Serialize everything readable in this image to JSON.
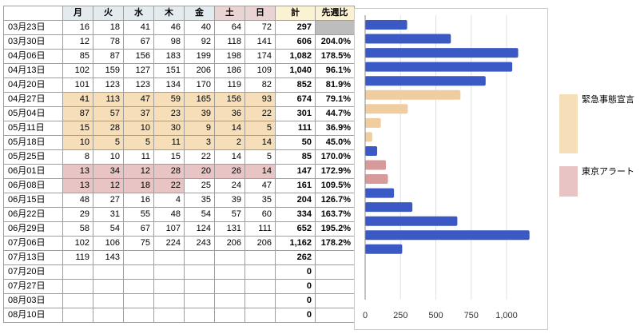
{
  "table": {
    "headers": [
      "",
      "月",
      "火",
      "水",
      "木",
      "金",
      "土",
      "日",
      "計",
      "先週比"
    ],
    "header_colors": [
      "#ffffff",
      "#e3ebef",
      "#e3ebef",
      "#e3ebef",
      "#e3ebef",
      "#e3ebef",
      "#ead3d3",
      "#ead3d3",
      "#fbf2d3",
      "#fbf2d3"
    ],
    "rows": [
      {
        "date": "03月23日",
        "days": [
          "16",
          "18",
          "41",
          "46",
          "40",
          "64",
          "72"
        ],
        "total": "297",
        "ratio": "",
        "period": "",
        "ratio_gray": true
      },
      {
        "date": "03月30日",
        "days": [
          "12",
          "78",
          "67",
          "98",
          "92",
          "118",
          "141"
        ],
        "total": "606",
        "ratio": "204.0%",
        "period": ""
      },
      {
        "date": "04月06日",
        "days": [
          "85",
          "87",
          "156",
          "183",
          "199",
          "198",
          "174"
        ],
        "total": "1,082",
        "ratio": "178.5%",
        "period": ""
      },
      {
        "date": "04月13日",
        "days": [
          "102",
          "159",
          "127",
          "151",
          "206",
          "186",
          "109"
        ],
        "total": "1,040",
        "ratio": "96.1%",
        "period": ""
      },
      {
        "date": "04月20日",
        "days": [
          "101",
          "123",
          "123",
          "134",
          "170",
          "119",
          "82"
        ],
        "total": "852",
        "ratio": "81.9%",
        "period": ""
      },
      {
        "date": "04月27日",
        "days": [
          "41",
          "113",
          "47",
          "59",
          "165",
          "156",
          "93"
        ],
        "total": "674",
        "ratio": "79.1%",
        "period": "emergency"
      },
      {
        "date": "05月04日",
        "days": [
          "87",
          "57",
          "37",
          "23",
          "39",
          "36",
          "22"
        ],
        "total": "301",
        "ratio": "44.7%",
        "period": "emergency"
      },
      {
        "date": "05月11日",
        "days": [
          "15",
          "28",
          "10",
          "30",
          "9",
          "14",
          "5"
        ],
        "total": "111",
        "ratio": "36.9%",
        "period": "emergency"
      },
      {
        "date": "05月18日",
        "days": [
          "10",
          "5",
          "5",
          "11",
          "3",
          "2",
          "14"
        ],
        "total": "50",
        "ratio": "45.0%",
        "period": "emergency"
      },
      {
        "date": "05月25日",
        "days": [
          "8",
          "10",
          "11",
          "15",
          "22",
          "14",
          "5"
        ],
        "total": "85",
        "ratio": "170.0%",
        "period": ""
      },
      {
        "date": "06月01日",
        "days": [
          "13",
          "34",
          "12",
          "28",
          "20",
          "26",
          "14"
        ],
        "total": "147",
        "ratio": "172.9%",
        "period": "alert"
      },
      {
        "date": "06月08日",
        "days": [
          "13",
          "12",
          "18",
          "22",
          "25",
          "24",
          "47"
        ],
        "total": "161",
        "ratio": "109.5%",
        "period": "alert-partial"
      },
      {
        "date": "06月15日",
        "days": [
          "48",
          "27",
          "16",
          "4",
          "35",
          "39",
          "35"
        ],
        "total": "204",
        "ratio": "126.7%",
        "period": ""
      },
      {
        "date": "06月22日",
        "days": [
          "29",
          "31",
          "55",
          "48",
          "54",
          "57",
          "60"
        ],
        "total": "334",
        "ratio": "163.7%",
        "period": ""
      },
      {
        "date": "06月29日",
        "days": [
          "58",
          "54",
          "67",
          "107",
          "124",
          "131",
          "111"
        ],
        "total": "652",
        "ratio": "195.2%",
        "period": ""
      },
      {
        "date": "07月06日",
        "days": [
          "102",
          "106",
          "75",
          "224",
          "243",
          "206",
          "206"
        ],
        "total": "1,162",
        "ratio": "178.2%",
        "period": ""
      },
      {
        "date": "07月13日",
        "days": [
          "119",
          "143",
          "",
          "",
          "",
          "",
          ""
        ],
        "total": "262",
        "ratio": "",
        "period": ""
      },
      {
        "date": "07月20日",
        "days": [
          "",
          "",
          "",
          "",
          "",
          "",
          ""
        ],
        "total": "0",
        "ratio": "",
        "period": ""
      },
      {
        "date": "07月27日",
        "days": [
          "",
          "",
          "",
          "",
          "",
          "",
          ""
        ],
        "total": "0",
        "ratio": "",
        "period": ""
      },
      {
        "date": "08月03日",
        "days": [
          "",
          "",
          "",
          "",
          "",
          "",
          ""
        ],
        "total": "0",
        "ratio": "",
        "period": ""
      },
      {
        "date": "08月10日",
        "days": [
          "",
          "",
          "",
          "",
          "",
          "",
          ""
        ],
        "total": "0",
        "ratio": "",
        "period": ""
      }
    ]
  },
  "colors": {
    "normal": "#3b59c4",
    "emergency": "#f5deb8",
    "alert": "#e8c4c4",
    "emergency_bar": "#f0cd9f",
    "alert_bar": "#d69a9a",
    "gray_cell": "#bdbdbd",
    "gridline": "#e0e0e0"
  },
  "legend": [
    {
      "label": "緊急事態宣言",
      "period": "emergency"
    },
    {
      "label": "東京アラート",
      "period": "alert"
    }
  ],
  "chart_data": {
    "type": "bar",
    "orientation": "horizontal",
    "categories": [
      "03月23日",
      "03月30日",
      "04月06日",
      "04月13日",
      "04月20日",
      "04月27日",
      "05月04日",
      "05月11日",
      "05月18日",
      "05月25日",
      "06月01日",
      "06月08日",
      "06月15日",
      "06月22日",
      "06月29日",
      "07月06日",
      "07月13日",
      "07月20日",
      "07月27日",
      "08月03日",
      "08月10日"
    ],
    "values": [
      297,
      606,
      1082,
      1040,
      852,
      674,
      301,
      111,
      50,
      85,
      147,
      161,
      204,
      334,
      652,
      1162,
      262,
      0,
      0,
      0,
      0
    ],
    "bar_periods": [
      "",
      "",
      "",
      "",
      "",
      "emergency",
      "emergency",
      "emergency",
      "emergency",
      "",
      "alert",
      "alert",
      "",
      "",
      "",
      "",
      "",
      "",
      "",
      "",
      ""
    ],
    "xlim": [
      0,
      1250
    ],
    "x_ticks": [
      0,
      250,
      500,
      750,
      1000
    ],
    "x_tick_labels": [
      "0",
      "250",
      "500",
      "750",
      "1,000"
    ],
    "grid": true,
    "legend_position": "right"
  }
}
